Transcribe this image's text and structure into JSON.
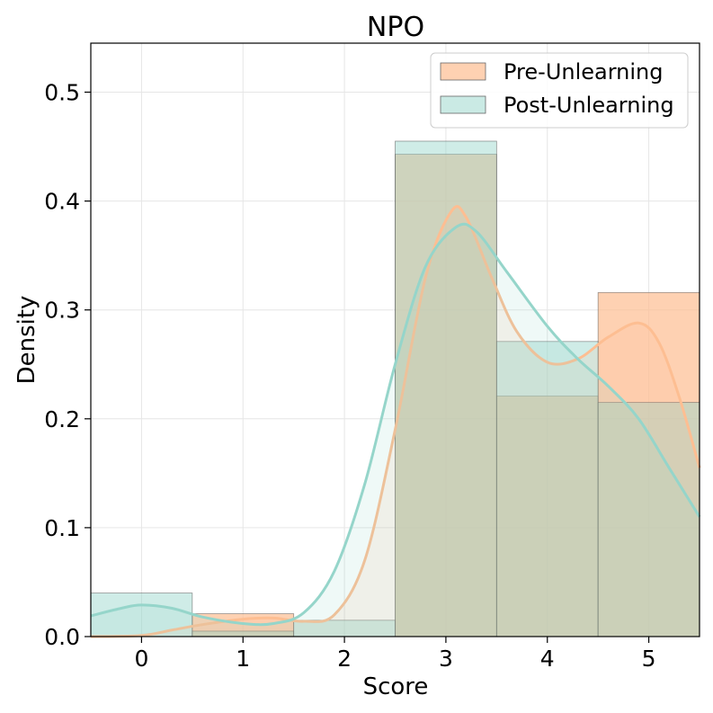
{
  "chart_data": {
    "type": "bar",
    "title": "NPO",
    "xlabel": "Score",
    "ylabel": "Density",
    "xlim": [
      -0.5,
      5.5
    ],
    "ylim": [
      0,
      0.545
    ],
    "x_ticks": [
      {
        "value": 0,
        "label": "0"
      },
      {
        "value": 1,
        "label": "1"
      },
      {
        "value": 2,
        "label": "2"
      },
      {
        "value": 3,
        "label": "3"
      },
      {
        "value": 4,
        "label": "4"
      },
      {
        "value": 5,
        "label": "5"
      }
    ],
    "y_ticks": [
      {
        "value": 0.0,
        "label": "0.0"
      },
      {
        "value": 0.1,
        "label": "0.1"
      },
      {
        "value": 0.2,
        "label": "0.2"
      },
      {
        "value": 0.3,
        "label": "0.3"
      },
      {
        "value": 0.4,
        "label": "0.4"
      },
      {
        "value": 0.5,
        "label": "0.5"
      }
    ],
    "grid": true,
    "legend_position": "top-right",
    "categories": [
      0,
      1,
      2,
      3,
      4,
      5
    ],
    "series": [
      {
        "name": "Pre-Unlearning",
        "color": "#FDBE92",
        "values": [
          0.0,
          0.021,
          0.0,
          0.443,
          0.221,
          0.316
        ],
        "kde": [
          [
            -0.5,
            0.0
          ],
          [
            0.0,
            0.001
          ],
          [
            0.3,
            0.006
          ],
          [
            0.6,
            0.011
          ],
          [
            1.0,
            0.016
          ],
          [
            1.3,
            0.017
          ],
          [
            1.6,
            0.014
          ],
          [
            1.9,
            0.02
          ],
          [
            2.2,
            0.07
          ],
          [
            2.5,
            0.19
          ],
          [
            2.8,
            0.33
          ],
          [
            3.05,
            0.39
          ],
          [
            3.2,
            0.385
          ],
          [
            3.45,
            0.33
          ],
          [
            3.7,
            0.28
          ],
          [
            4.0,
            0.252
          ],
          [
            4.3,
            0.255
          ],
          [
            4.6,
            0.275
          ],
          [
            4.9,
            0.288
          ],
          [
            5.1,
            0.27
          ],
          [
            5.3,
            0.22
          ],
          [
            5.5,
            0.155
          ]
        ]
      },
      {
        "name": "Post-Unlearning",
        "color": "#95D5CA",
        "values": [
          0.04,
          0.005,
          0.015,
          0.455,
          0.271,
          0.215
        ],
        "kde": [
          [
            -0.5,
            0.019
          ],
          [
            -0.2,
            0.026
          ],
          [
            0.0,
            0.029
          ],
          [
            0.3,
            0.026
          ],
          [
            0.6,
            0.018
          ],
          [
            1.0,
            0.012
          ],
          [
            1.3,
            0.012
          ],
          [
            1.6,
            0.022
          ],
          [
            1.9,
            0.06
          ],
          [
            2.2,
            0.14
          ],
          [
            2.5,
            0.25
          ],
          [
            2.8,
            0.34
          ],
          [
            3.1,
            0.376
          ],
          [
            3.3,
            0.372
          ],
          [
            3.6,
            0.335
          ],
          [
            4.0,
            0.285
          ],
          [
            4.3,
            0.255
          ],
          [
            4.6,
            0.23
          ],
          [
            4.9,
            0.2
          ],
          [
            5.2,
            0.155
          ],
          [
            5.5,
            0.11
          ]
        ]
      }
    ]
  }
}
